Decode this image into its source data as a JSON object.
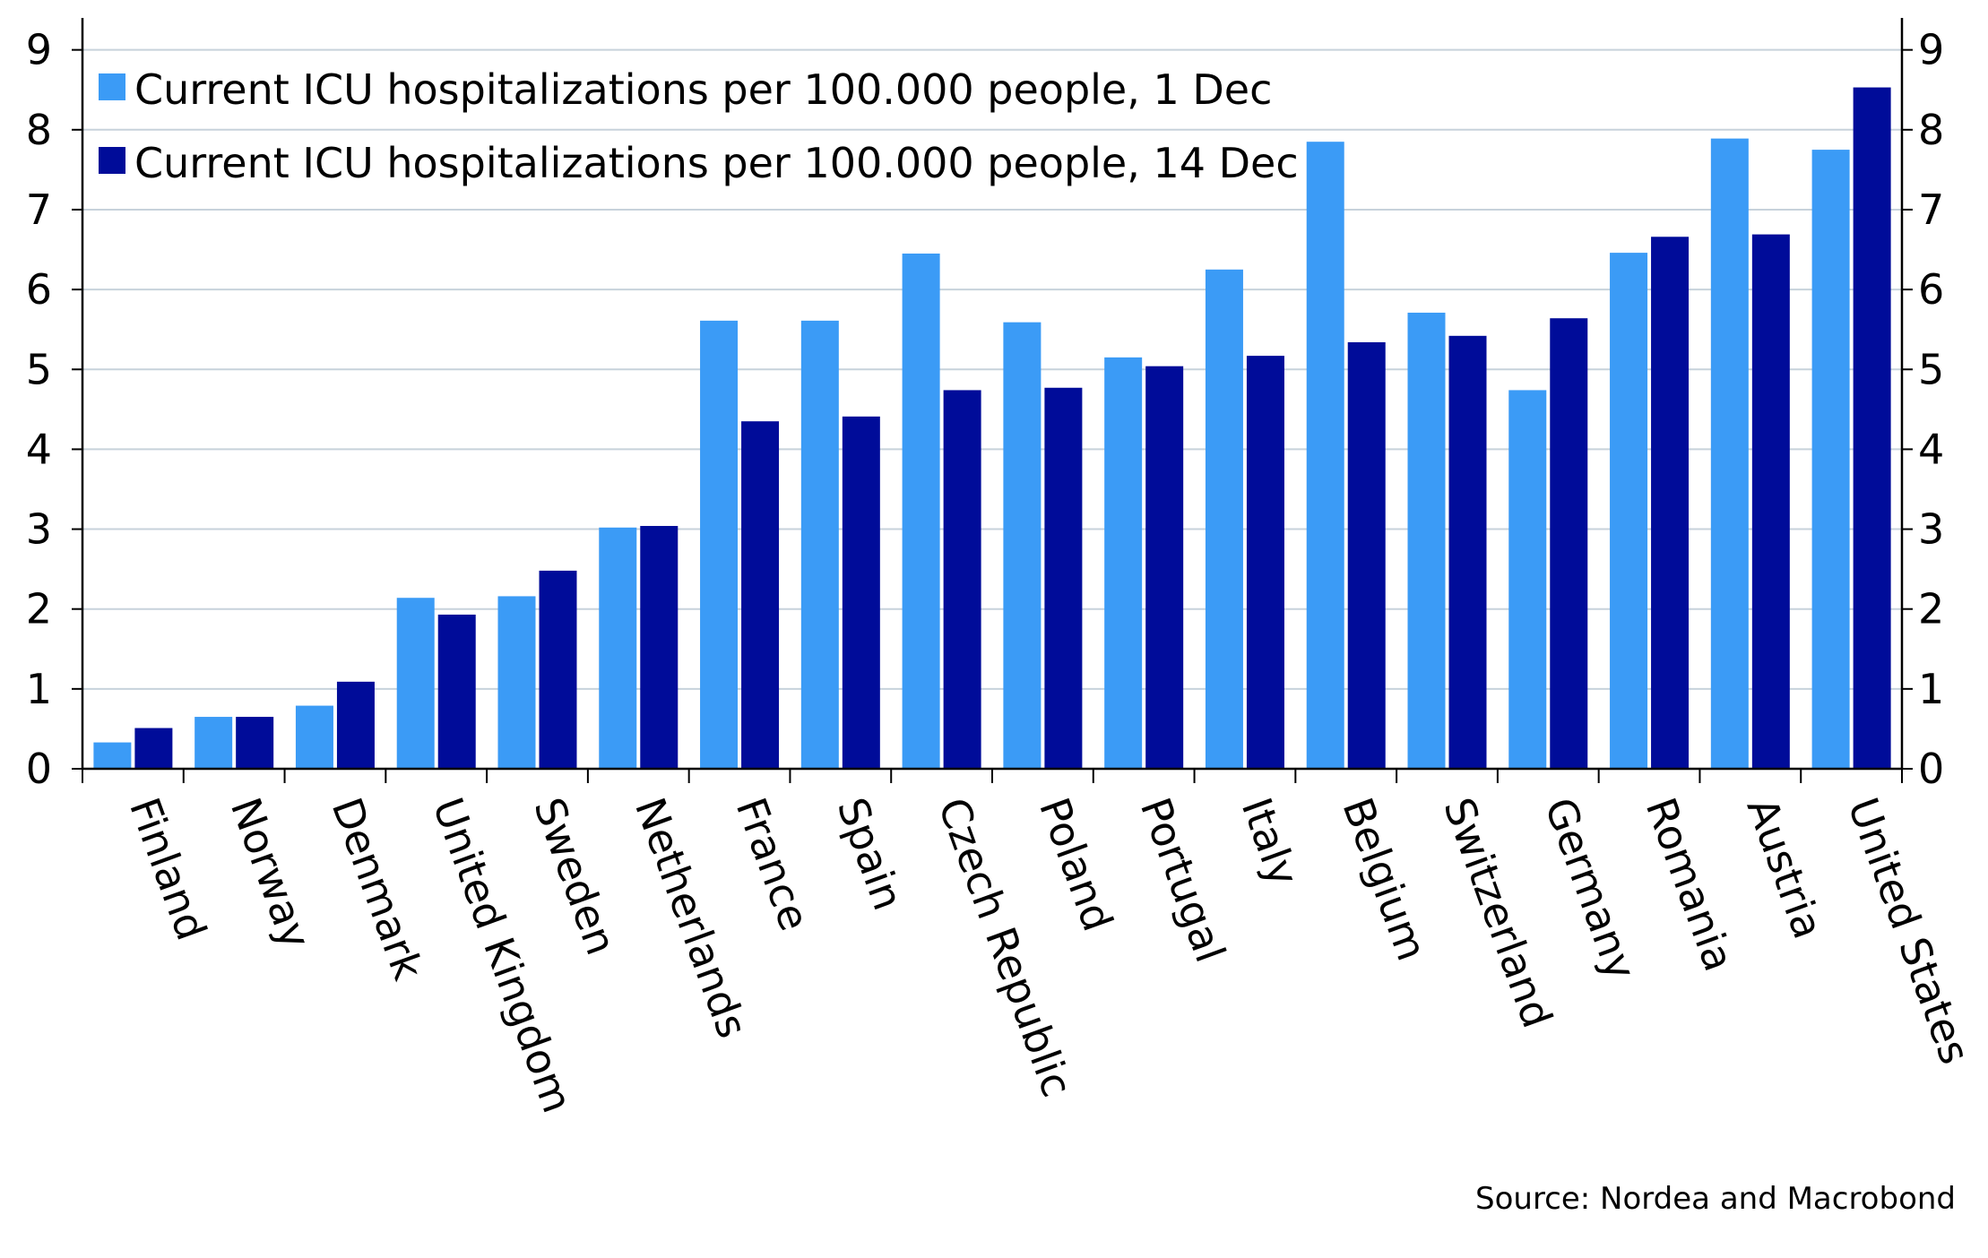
{
  "chart_data": {
    "type": "bar",
    "categories": [
      "Finland",
      "Norway",
      "Denmark",
      "United Kingdom",
      "Sweden",
      "Netherlands",
      "France",
      "Spain",
      "Czech Republic",
      "Poland",
      "Portugal",
      "Italy",
      "Belgium",
      "Switzerland",
      "Germany",
      "Romania",
      "Austria",
      "United States"
    ],
    "series": [
      {
        "name": "Current ICU hospitalizations per 100.000 people, 1 Dec",
        "color": "#3b9bf6",
        "values": [
          0.33,
          0.65,
          0.79,
          2.14,
          2.16,
          3.02,
          5.61,
          5.61,
          6.45,
          5.59,
          5.15,
          6.25,
          7.85,
          5.71,
          4.74,
          6.46,
          7.89,
          7.75
        ]
      },
      {
        "name": "Current ICU hospitalizations per 100.000 people, 14 Dec",
        "color": "#000c99",
        "values": [
          0.51,
          0.65,
          1.09,
          1.93,
          2.48,
          3.04,
          4.35,
          4.41,
          4.74,
          4.77,
          5.04,
          5.17,
          5.34,
          5.42,
          5.64,
          6.66,
          6.69,
          8.53
        ]
      }
    ],
    "y_ticks": [
      "0",
      "1",
      "2",
      "3",
      "4",
      "5",
      "6",
      "7",
      "8",
      "9"
    ],
    "ylim": [
      0,
      9.4
    ],
    "grid": true,
    "legend_position": "top-left",
    "source": "Source: Nordea and Macrobond"
  }
}
